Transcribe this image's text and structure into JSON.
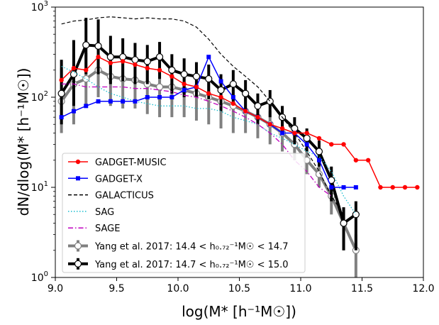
{
  "chart_data": {
    "type": "line",
    "xlabel": "log(M* [h⁻¹M☉])",
    "ylabel": "dN/dlog(M* [h⁻¹M☉])",
    "xlim": [
      9.0,
      12.0
    ],
    "ylim": [
      1,
      1000
    ],
    "yscale": "log",
    "x_ticks": [
      "9.0",
      "9.5",
      "10.0",
      "10.5",
      "11.0",
      "11.5",
      "12.0"
    ],
    "y_ticks": [
      {
        "base": "10",
        "exp": "0"
      },
      {
        "base": "10",
        "exp": "1"
      },
      {
        "base": "10",
        "exp": "2"
      },
      {
        "base": "10",
        "exp": "3"
      }
    ],
    "legend_position": "lower-left",
    "series": [
      {
        "name": "GADGET-MUSIC",
        "color": "#ff0000",
        "style": "solid-marker-circle",
        "x": [
          9.05,
          9.15,
          9.25,
          9.35,
          9.45,
          9.55,
          9.65,
          9.75,
          9.85,
          9.95,
          10.05,
          10.15,
          10.25,
          10.35,
          10.45,
          10.55,
          10.65,
          10.75,
          10.85,
          10.95,
          11.05,
          11.15,
          11.25,
          11.35,
          11.45,
          11.55,
          11.65,
          11.75,
          11.85,
          11.95
        ],
        "y": [
          155,
          210,
          200,
          280,
          240,
          250,
          230,
          210,
          200,
          170,
          140,
          130,
          110,
          100,
          85,
          70,
          60,
          50,
          45,
          40,
          40,
          35,
          30,
          30,
          20,
          20,
          10,
          10,
          10,
          10
        ]
      },
      {
        "name": "GADGET-X",
        "color": "#0000ff",
        "style": "solid-marker-square",
        "x": [
          9.05,
          9.15,
          9.25,
          9.35,
          9.45,
          9.55,
          9.65,
          9.75,
          9.85,
          9.95,
          10.05,
          10.15,
          10.25,
          10.35,
          10.45,
          10.55,
          10.65,
          10.75,
          10.85,
          10.95,
          11.05,
          11.15,
          11.25,
          11.35,
          11.45
        ],
        "y": [
          60,
          70,
          80,
          90,
          90,
          90,
          90,
          100,
          100,
          100,
          120,
          130,
          280,
          150,
          100,
          70,
          60,
          50,
          40,
          40,
          30,
          20,
          10,
          10,
          10
        ]
      },
      {
        "name": "GALACTICUS",
        "color": "#000000",
        "style": "dashed",
        "x": [
          9.05,
          9.15,
          9.25,
          9.35,
          9.45,
          9.55,
          9.65,
          9.75,
          9.85,
          9.95,
          10.05,
          10.15,
          10.25,
          10.35,
          10.45,
          10.55,
          10.65,
          10.75,
          10.85,
          10.95,
          11.05,
          11.15,
          11.25,
          11.35
        ],
        "y": [
          650,
          700,
          720,
          760,
          780,
          760,
          740,
          760,
          740,
          740,
          700,
          600,
          440,
          300,
          220,
          170,
          130,
          90,
          60,
          40,
          25,
          15,
          8,
          5
        ]
      },
      {
        "name": "SAG",
        "color": "#17becf",
        "style": "dotted",
        "x": [
          9.05,
          9.15,
          9.25,
          9.35,
          9.45,
          9.55,
          9.65,
          9.75,
          9.85,
          9.95,
          10.05,
          10.15,
          10.25,
          10.35,
          10.45,
          10.55,
          10.65,
          10.75,
          10.85,
          10.95,
          11.05,
          11.15,
          11.25,
          11.35,
          11.45
        ],
        "y": [
          220,
          190,
          160,
          130,
          110,
          100,
          90,
          85,
          80,
          80,
          80,
          75,
          75,
          70,
          60,
          55,
          50,
          40,
          35,
          30,
          25,
          22,
          15,
          8,
          5
        ]
      },
      {
        "name": "SAGE",
        "color": "#bf00bf",
        "style": "dashdot",
        "x": [
          9.05,
          9.15,
          9.25,
          9.35,
          9.45,
          9.55,
          9.65,
          9.75,
          9.85,
          9.95,
          10.05,
          10.15,
          10.25,
          10.35,
          10.45,
          10.55,
          10.65,
          10.75,
          10.85,
          10.95,
          11.05,
          11.15,
          11.25
        ],
        "y": [
          140,
          140,
          130,
          130,
          130,
          130,
          125,
          125,
          120,
          115,
          105,
          100,
          90,
          80,
          70,
          60,
          50,
          40,
          30,
          20,
          15,
          10,
          8
        ]
      },
      {
        "name": "Yang et al. 2017: 14.4 < h₀.₇₂⁻¹M☉ < 14.7",
        "color": "#808080",
        "style": "thick-errorbar-open-circle",
        "x": [
          9.05,
          9.15,
          9.25,
          9.35,
          9.45,
          9.55,
          9.65,
          9.75,
          9.85,
          9.95,
          10.05,
          10.15,
          10.25,
          10.35,
          10.45,
          10.55,
          10.65,
          10.75,
          10.85,
          10.95,
          11.05,
          11.15,
          11.25,
          11.35,
          11.45
        ],
        "y": [
          90,
          140,
          160,
          200,
          170,
          160,
          155,
          140,
          130,
          130,
          120,
          110,
          100,
          90,
          80,
          70,
          60,
          50,
          40,
          30,
          20,
          14,
          8,
          4,
          2
        ],
        "yerr_low": [
          50,
          90,
          80,
          100,
          90,
          85,
          80,
          75,
          70,
          70,
          60,
          55,
          50,
          45,
          40,
          30,
          25,
          20,
          15,
          10,
          6,
          4,
          3,
          2,
          1
        ],
        "yerr_high": [
          120,
          160,
          150,
          150,
          130,
          120,
          110,
          90,
          80,
          70,
          60,
          55,
          50,
          45,
          40,
          30,
          25,
          20,
          15,
          10,
          6,
          4,
          3,
          2,
          1
        ]
      },
      {
        "name": "Yang et al. 2017: 14.7 < h₀.₇₂⁻¹M☉ < 15.0",
        "color": "#000000",
        "style": "thick-errorbar-open-circle",
        "x": [
          9.05,
          9.15,
          9.25,
          9.35,
          9.45,
          9.55,
          9.65,
          9.75,
          9.85,
          9.95,
          10.05,
          10.15,
          10.25,
          10.35,
          10.45,
          10.55,
          10.65,
          10.75,
          10.85,
          10.95,
          11.05,
          11.15,
          11.25,
          11.35,
          11.45
        ],
        "y": [
          110,
          180,
          380,
          370,
          280,
          280,
          260,
          250,
          280,
          200,
          180,
          170,
          160,
          120,
          140,
          110,
          80,
          90,
          60,
          45,
          35,
          25,
          12,
          4,
          5
        ],
        "yerr_low": [
          60,
          100,
          200,
          190,
          140,
          130,
          120,
          110,
          120,
          90,
          80,
          70,
          65,
          50,
          55,
          40,
          30,
          30,
          20,
          15,
          10,
          8,
          5,
          2,
          3
        ],
        "yerr_high": [
          150,
          250,
          380,
          360,
          200,
          170,
          140,
          130,
          130,
          100,
          90,
          75,
          70,
          60,
          60,
          45,
          30,
          30,
          20,
          15,
          10,
          8,
          5,
          2,
          2
        ]
      }
    ]
  }
}
